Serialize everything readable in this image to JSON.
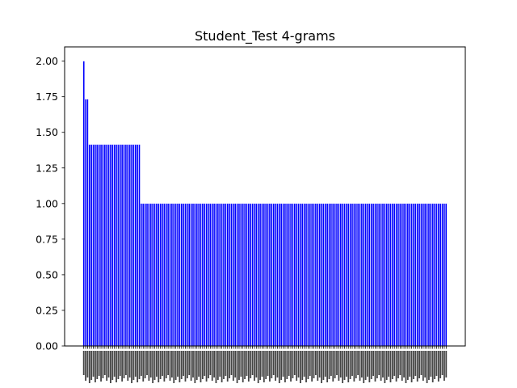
{
  "chart_data": {
    "type": "bar",
    "title": "Student_Test 4-grams",
    "xlabel": "",
    "ylabel": "",
    "ylim": [
      0,
      2.1
    ],
    "yticks": [
      "0.00",
      "0.25",
      "0.50",
      "0.75",
      "1.00",
      "1.25",
      "1.50",
      "1.75",
      "2.00"
    ],
    "bar_color": "#0000ff",
    "grid": false,
    "x_tick_labels_legible": false,
    "series": [
      {
        "groups": [
          {
            "value": 2.0,
            "count": 1
          },
          {
            "value": 1.732,
            "count": 2
          },
          {
            "value": 1.414,
            "count": 27
          },
          {
            "value": 1.0,
            "count": 160
          }
        ]
      }
    ]
  }
}
